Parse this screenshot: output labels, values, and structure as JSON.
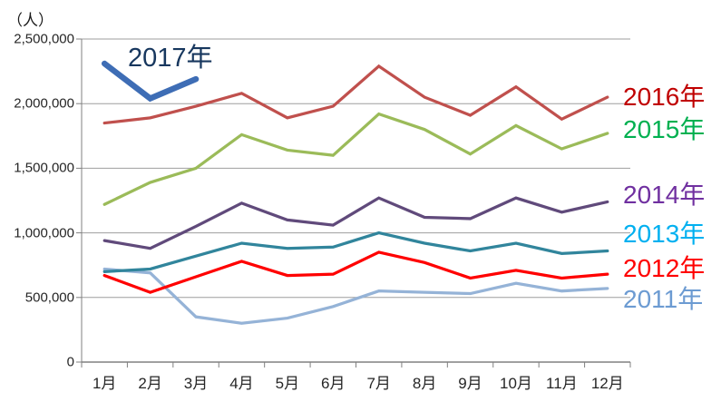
{
  "unit_label": "（人）",
  "chart_data": {
    "type": "line",
    "title": "",
    "ylabel": "（人）",
    "xlabel": "",
    "x_categories": [
      "1月",
      "2月",
      "3月",
      "4月",
      "5月",
      "6月",
      "7月",
      "8月",
      "9月",
      "10月",
      "11月",
      "12月"
    ],
    "ylim": [
      0,
      2500000
    ],
    "ytick_interval": 500000,
    "y_tick_labels": [
      "0",
      "500,000",
      "1,000,000",
      "1,500,000",
      "2,000,000",
      "2,500,000"
    ],
    "grid": true,
    "legend_position": "right-edge-colored-labels",
    "series": [
      {
        "name": "2011年",
        "line_color": "#95B3D7",
        "label_color": "#6C9BD2",
        "values": [
          720000,
          690000,
          350000,
          300000,
          340000,
          430000,
          550000,
          540000,
          530000,
          610000,
          550000,
          570000
        ]
      },
      {
        "name": "2012年",
        "line_color": "#FF0000",
        "label_color": "#FF0000",
        "values": [
          670000,
          540000,
          660000,
          780000,
          670000,
          680000,
          850000,
          770000,
          650000,
          710000,
          650000,
          680000
        ]
      },
      {
        "name": "2013年",
        "line_color": "#31859C",
        "label_color": "#00B0F0",
        "values": [
          700000,
          720000,
          820000,
          920000,
          880000,
          890000,
          1000000,
          920000,
          860000,
          920000,
          840000,
          860000
        ]
      },
      {
        "name": "2014年",
        "line_color": "#604A7B",
        "label_color": "#7030A0",
        "values": [
          940000,
          880000,
          1050000,
          1230000,
          1100000,
          1060000,
          1270000,
          1120000,
          1110000,
          1270000,
          1160000,
          1240000
        ]
      },
      {
        "name": "2015年",
        "line_color": "#9BBB59",
        "label_color": "#00B050",
        "values": [
          1220000,
          1390000,
          1500000,
          1760000,
          1640000,
          1600000,
          1920000,
          1800000,
          1610000,
          1830000,
          1650000,
          1770000
        ]
      },
      {
        "name": "2016年",
        "line_color": "#C0504D",
        "label_color": "#C00000",
        "values": [
          1850000,
          1890000,
          1980000,
          2080000,
          1890000,
          1980000,
          2290000,
          2050000,
          1910000,
          2130000,
          1880000,
          2050000
        ]
      },
      {
        "name": "2017年",
        "line_color": "#3E6DB5",
        "label_color": "#17375E",
        "values": [
          2310000,
          2040000,
          2190000
        ],
        "thick": true,
        "label_placement": "inline-top-left"
      }
    ]
  }
}
